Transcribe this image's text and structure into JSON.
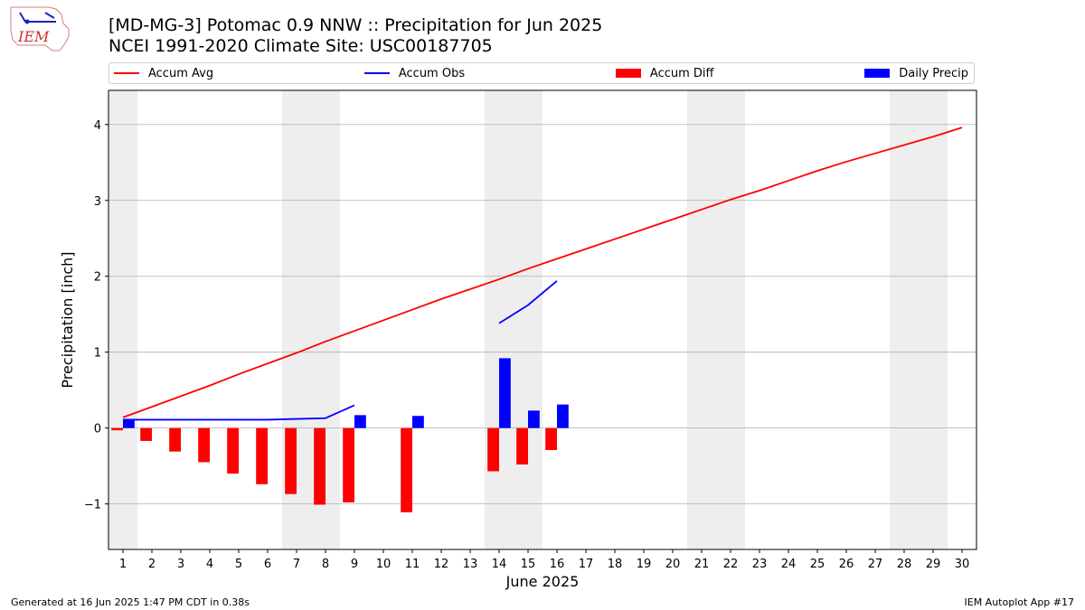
{
  "header": {
    "logo_text": "IEM",
    "title_line1": "[MD-MG-3] Potomac 0.9 NNW :: Precipitation for Jun 2025",
    "title_line2": "NCEI 1991-2020 Climate Site: USC00187705"
  },
  "legend": {
    "accum_avg": "Accum Avg",
    "accum_obs": "Accum Obs",
    "accum_diff": "Accum Diff",
    "daily_precip": "Daily Precip"
  },
  "colors": {
    "accum_avg": "#ff0000",
    "accum_obs": "#0000ff",
    "accum_diff": "#ff0000",
    "daily_precip": "#0000ff",
    "weekend_band": "#eeeeee",
    "grid": "#b0b0b0"
  },
  "footer": {
    "left": "Generated at 16 Jun 2025 1:47 PM CDT in 0.38s",
    "right": "IEM Autoplot App #17"
  },
  "chart_data": {
    "type": "bar",
    "xlabel": "June 2025",
    "ylabel": "Precipitation [inch]",
    "xlim": [
      0.5,
      30.5
    ],
    "ylim": [
      -1.6,
      4.45
    ],
    "yticks": [
      -1,
      0,
      1,
      2,
      3,
      4
    ],
    "ytick_labels": [
      "−1",
      "0",
      "1",
      "2",
      "3",
      "4"
    ],
    "grid": "horizontal",
    "legend_position": "top",
    "weekend_days": [
      1,
      7,
      8,
      14,
      15,
      21,
      22,
      28,
      29
    ],
    "days": [
      1,
      2,
      3,
      4,
      5,
      6,
      7,
      8,
      9,
      10,
      11,
      12,
      13,
      14,
      15,
      16,
      17,
      18,
      19,
      20,
      21,
      22,
      23,
      24,
      25,
      26,
      27,
      28,
      29,
      30
    ],
    "accum_avg": [
      0.14,
      0.28,
      0.42,
      0.56,
      0.71,
      0.85,
      0.99,
      1.14,
      1.28,
      1.42,
      1.56,
      1.7,
      1.83,
      1.96,
      2.1,
      2.23,
      2.36,
      2.49,
      2.62,
      2.75,
      2.88,
      3.01,
      3.13,
      3.26,
      3.39,
      3.51,
      3.62,
      3.73,
      3.84,
      3.96
    ],
    "accum_obs": [
      0.11,
      0.11,
      0.11,
      0.11,
      0.11,
      0.11,
      0.12,
      0.13,
      0.3,
      null,
      null,
      null,
      null,
      1.38,
      1.62,
      1.94,
      null,
      null,
      null,
      null,
      null,
      null,
      null,
      null,
      null,
      null,
      null,
      null,
      null,
      null
    ],
    "accum_diff": [
      -0.03,
      -0.17,
      -0.31,
      -0.45,
      -0.6,
      -0.74,
      -0.87,
      -1.01,
      -0.98,
      null,
      -1.11,
      null,
      null,
      -0.57,
      -0.48,
      -0.29,
      null,
      null,
      null,
      null,
      null,
      null,
      null,
      null,
      null,
      null,
      null,
      null,
      null,
      null
    ],
    "daily_precip": [
      0.11,
      0.0,
      0.0,
      0.0,
      0.0,
      0.0,
      0.0,
      0.0,
      0.17,
      null,
      0.16,
      null,
      null,
      0.92,
      0.23,
      0.31,
      null,
      null,
      null,
      null,
      null,
      null,
      null,
      null,
      null,
      null,
      null,
      null,
      null,
      null
    ]
  }
}
